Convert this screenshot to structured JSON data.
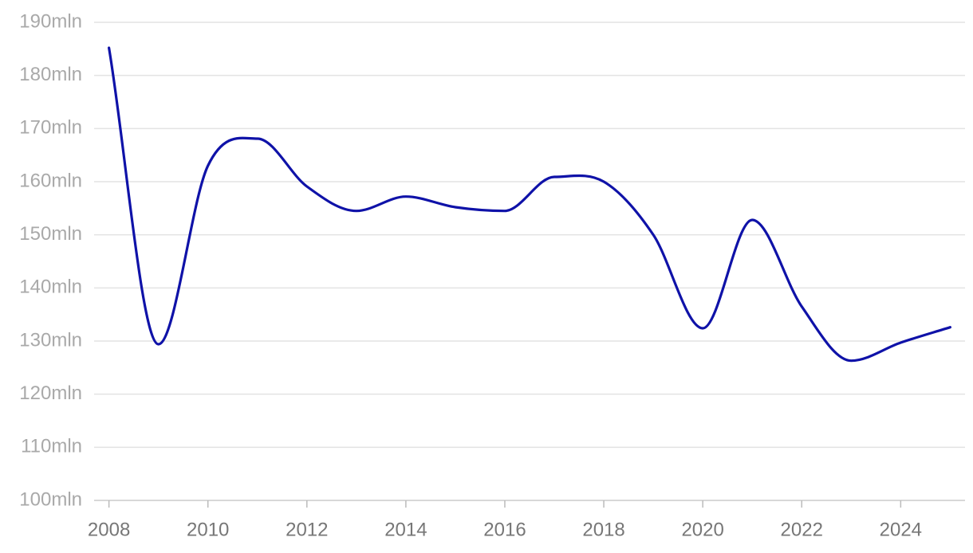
{
  "chart_data": {
    "type": "line",
    "x": [
      2008,
      2009,
      2010,
      2011,
      2012,
      2013,
      2014,
      2015,
      2016,
      2017,
      2018,
      2019,
      2020,
      2021,
      2022,
      2023,
      2024,
      2025
    ],
    "series": [
      {
        "color": "#0f12a8",
        "values": [
          185.2,
          129.4,
          163,
          168.1,
          159.1,
          154.5,
          157.2,
          155.2,
          154.5,
          160.9,
          160,
          150,
          132.4,
          152.8,
          136.5,
          126.3,
          129.7,
          132.6
        ]
      }
    ],
    "xlim": [
      2007.7,
      2025.3
    ],
    "xticks": [
      2008,
      2010,
      2012,
      2014,
      2016,
      2018,
      2020,
      2022,
      2024
    ],
    "ylim": [
      100,
      190
    ],
    "yticks": [
      {
        "value": 100,
        "label": "100mln"
      },
      {
        "value": 110,
        "label": "110mln"
      },
      {
        "value": 120,
        "label": "120mln"
      },
      {
        "value": 130,
        "label": "130mln"
      },
      {
        "value": 140,
        "label": "140mln"
      },
      {
        "value": 150,
        "label": "150mln"
      },
      {
        "value": 160,
        "label": "160mln"
      },
      {
        "value": 170,
        "label": "170mln"
      },
      {
        "value": 180,
        "label": "180mln"
      },
      {
        "value": 190,
        "label": "190mln"
      }
    ],
    "grid": true
  }
}
